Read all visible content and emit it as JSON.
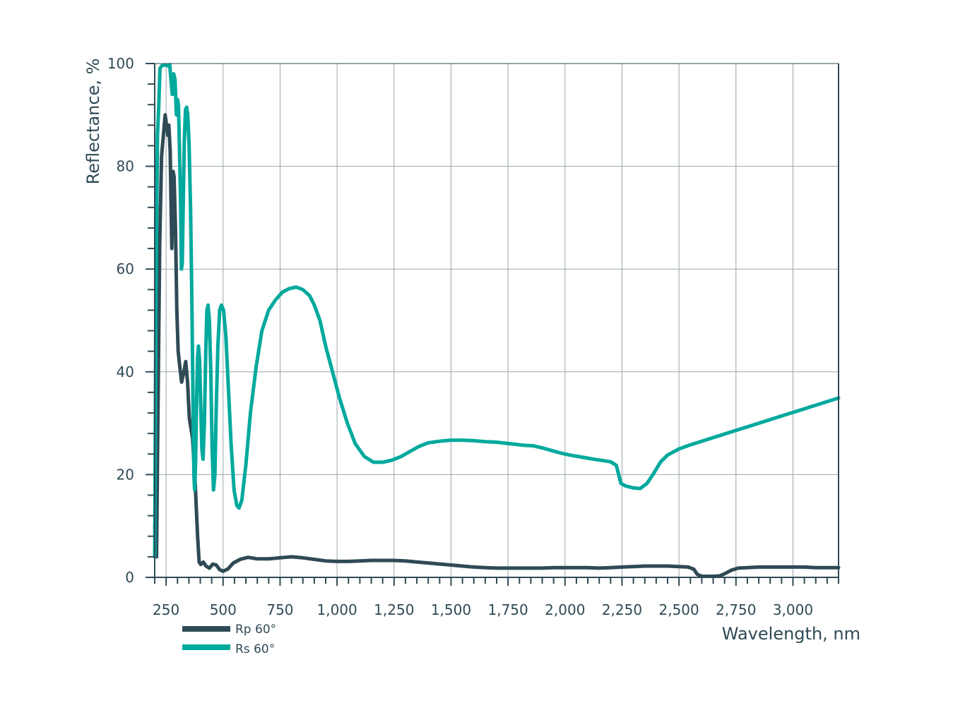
{
  "chart_data": {
    "type": "line",
    "xlabel": "Wavelength, nm",
    "ylabel": "Reflectance, %",
    "xlim": [
      200,
      3200
    ],
    "ylim": [
      0,
      100
    ],
    "x_ticks": [
      250,
      500,
      750,
      1000,
      1250,
      1500,
      1750,
      2000,
      2250,
      2500,
      2750,
      3000
    ],
    "x_tick_labels": [
      "250",
      "500",
      "750",
      "1,000",
      "1,250",
      "1,500",
      "1,750",
      "2,000",
      "2,250",
      "2,500",
      "2,750",
      "3,000"
    ],
    "y_ticks": [
      0,
      20,
      40,
      60,
      80,
      100
    ],
    "y_tick_labels": [
      "0",
      "20",
      "40",
      "60",
      "80",
      "100"
    ],
    "grid": true,
    "legend_position": "bottom-left",
    "colors": {
      "Rp 60°": "#2f4a55",
      "Rs 60°": "#00a99d"
    },
    "series": [
      {
        "name": "Rp 60°",
        "color": "#2f4a55",
        "points": [
          [
            200,
            10
          ],
          [
            208,
            4
          ],
          [
            215,
            35
          ],
          [
            222,
            65
          ],
          [
            230,
            82
          ],
          [
            238,
            86
          ],
          [
            246,
            90
          ],
          [
            252,
            88
          ],
          [
            258,
            86
          ],
          [
            262,
            88
          ],
          [
            268,
            83
          ],
          [
            275,
            64
          ],
          [
            281,
            79
          ],
          [
            285,
            78
          ],
          [
            291,
            68
          ],
          [
            297,
            52
          ],
          [
            303,
            44
          ],
          [
            310,
            41
          ],
          [
            318,
            38
          ],
          [
            328,
            40
          ],
          [
            336,
            42
          ],
          [
            344,
            38
          ],
          [
            352,
            31
          ],
          [
            366,
            27
          ],
          [
            378,
            18
          ],
          [
            388,
            8
          ],
          [
            395,
            3
          ],
          [
            402,
            2.5
          ],
          [
            413,
            3
          ],
          [
            425,
            2.2
          ],
          [
            440,
            1.8
          ],
          [
            455,
            2.6
          ],
          [
            470,
            2.4
          ],
          [
            485,
            1.5
          ],
          [
            500,
            1.2
          ],
          [
            520,
            1.6
          ],
          [
            545,
            2.8
          ],
          [
            575,
            3.5
          ],
          [
            610,
            3.9
          ],
          [
            650,
            3.6
          ],
          [
            700,
            3.6
          ],
          [
            750,
            3.8
          ],
          [
            800,
            4
          ],
          [
            850,
            3.8
          ],
          [
            900,
            3.5
          ],
          [
            950,
            3.2
          ],
          [
            1000,
            3.1
          ],
          [
            1050,
            3.1
          ],
          [
            1100,
            3.2
          ],
          [
            1150,
            3.3
          ],
          [
            1200,
            3.3
          ],
          [
            1250,
            3.3
          ],
          [
            1300,
            3.2
          ],
          [
            1350,
            3
          ],
          [
            1400,
            2.8
          ],
          [
            1450,
            2.6
          ],
          [
            1500,
            2.4
          ],
          [
            1550,
            2.2
          ],
          [
            1600,
            2
          ],
          [
            1650,
            1.9
          ],
          [
            1700,
            1.8
          ],
          [
            1750,
            1.8
          ],
          [
            1800,
            1.8
          ],
          [
            1850,
            1.8
          ],
          [
            1900,
            1.8
          ],
          [
            1950,
            1.9
          ],
          [
            2000,
            1.9
          ],
          [
            2050,
            1.9
          ],
          [
            2100,
            1.9
          ],
          [
            2150,
            1.8
          ],
          [
            2200,
            1.9
          ],
          [
            2250,
            2
          ],
          [
            2300,
            2.1
          ],
          [
            2350,
            2.2
          ],
          [
            2400,
            2.2
          ],
          [
            2450,
            2.2
          ],
          [
            2500,
            2.1
          ],
          [
            2540,
            2
          ],
          [
            2565,
            1.6
          ],
          [
            2580,
            0.6
          ],
          [
            2600,
            0.2
          ],
          [
            2650,
            0.2
          ],
          [
            2680,
            0.3
          ],
          [
            2700,
            0.7
          ],
          [
            2730,
            1.4
          ],
          [
            2760,
            1.8
          ],
          [
            2800,
            1.9
          ],
          [
            2850,
            2
          ],
          [
            2900,
            2
          ],
          [
            2950,
            2
          ],
          [
            3000,
            2
          ],
          [
            3050,
            2
          ],
          [
            3100,
            1.9
          ],
          [
            3150,
            1.9
          ],
          [
            3200,
            1.9
          ]
        ]
      },
      {
        "name": "Rs 60°",
        "color": "#00a99d",
        "points": [
          [
            200,
            4
          ],
          [
            205,
            52
          ],
          [
            212,
            86
          ],
          [
            218,
            92
          ],
          [
            223,
            99
          ],
          [
            230,
            99.5
          ],
          [
            238,
            99.7
          ],
          [
            246,
            99.7
          ],
          [
            253,
            99.6
          ],
          [
            260,
            99.5
          ],
          [
            266,
            99.8
          ],
          [
            271,
            97
          ],
          [
            277,
            94
          ],
          [
            283,
            98
          ],
          [
            289,
            97
          ],
          [
            295,
            90
          ],
          [
            300,
            93
          ],
          [
            304,
            92
          ],
          [
            308,
            85
          ],
          [
            313,
            74
          ],
          [
            317,
            60
          ],
          [
            321,
            61
          ],
          [
            325,
            72
          ],
          [
            330,
            85
          ],
          [
            335,
            91
          ],
          [
            340,
            91.5
          ],
          [
            345,
            90
          ],
          [
            351,
            84
          ],
          [
            357,
            72
          ],
          [
            362,
            57
          ],
          [
            366,
            42
          ],
          [
            369,
            30
          ],
          [
            372,
            20
          ],
          [
            375,
            17
          ],
          [
            379,
            22
          ],
          [
            384,
            35
          ],
          [
            388,
            43
          ],
          [
            392,
            45
          ],
          [
            397,
            42
          ],
          [
            402,
            33
          ],
          [
            407,
            25
          ],
          [
            412,
            23
          ],
          [
            418,
            30
          ],
          [
            424,
            44
          ],
          [
            429,
            52
          ],
          [
            434,
            53
          ],
          [
            440,
            50
          ],
          [
            446,
            40
          ],
          [
            452,
            25
          ],
          [
            458,
            17
          ],
          [
            464,
            20
          ],
          [
            470,
            33
          ],
          [
            477,
            45
          ],
          [
            485,
            52
          ],
          [
            493,
            53
          ],
          [
            502,
            52
          ],
          [
            512,
            47
          ],
          [
            522,
            38
          ],
          [
            535,
            26
          ],
          [
            548,
            17
          ],
          [
            560,
            14
          ],
          [
            570,
            13.5
          ],
          [
            582,
            15
          ],
          [
            600,
            22
          ],
          [
            620,
            32
          ],
          [
            645,
            41
          ],
          [
            670,
            48
          ],
          [
            700,
            52
          ],
          [
            730,
            54
          ],
          [
            760,
            55.5
          ],
          [
            790,
            56.2
          ],
          [
            820,
            56.5
          ],
          [
            850,
            56
          ],
          [
            880,
            54.8
          ],
          [
            900,
            53
          ],
          [
            925,
            50
          ],
          [
            950,
            45
          ],
          [
            980,
            40
          ],
          [
            1010,
            35
          ],
          [
            1045,
            30
          ],
          [
            1080,
            26
          ],
          [
            1120,
            23.5
          ],
          [
            1160,
            22.4
          ],
          [
            1200,
            22.4
          ],
          [
            1240,
            22.8
          ],
          [
            1280,
            23.5
          ],
          [
            1320,
            24.5
          ],
          [
            1360,
            25.5
          ],
          [
            1400,
            26.2
          ],
          [
            1450,
            26.5
          ],
          [
            1500,
            26.7
          ],
          [
            1550,
            26.7
          ],
          [
            1600,
            26.6
          ],
          [
            1650,
            26.4
          ],
          [
            1700,
            26.3
          ],
          [
            1740,
            26.1
          ],
          [
            1780,
            25.9
          ],
          [
            1820,
            25.7
          ],
          [
            1860,
            25.6
          ],
          [
            1900,
            25.2
          ],
          [
            1940,
            24.7
          ],
          [
            1980,
            24.2
          ],
          [
            2020,
            23.8
          ],
          [
            2060,
            23.5
          ],
          [
            2100,
            23.2
          ],
          [
            2140,
            22.9
          ],
          [
            2170,
            22.7
          ],
          [
            2200,
            22.5
          ],
          [
            2225,
            21.8
          ],
          [
            2245,
            18.3
          ],
          [
            2265,
            17.8
          ],
          [
            2300,
            17.4
          ],
          [
            2330,
            17.3
          ],
          [
            2360,
            18.3
          ],
          [
            2390,
            20.3
          ],
          [
            2420,
            22.5
          ],
          [
            2450,
            23.8
          ],
          [
            2500,
            25
          ],
          [
            2550,
            25.8
          ],
          [
            2600,
            26.5
          ],
          [
            2650,
            27.2
          ],
          [
            2700,
            27.9
          ],
          [
            2750,
            28.6
          ],
          [
            2800,
            29.3
          ],
          [
            2850,
            30
          ],
          [
            2900,
            30.7
          ],
          [
            2950,
            31.4
          ],
          [
            3000,
            32.1
          ],
          [
            3050,
            32.8
          ],
          [
            3100,
            33.5
          ],
          [
            3150,
            34.2
          ],
          [
            3200,
            34.9
          ]
        ]
      }
    ]
  }
}
